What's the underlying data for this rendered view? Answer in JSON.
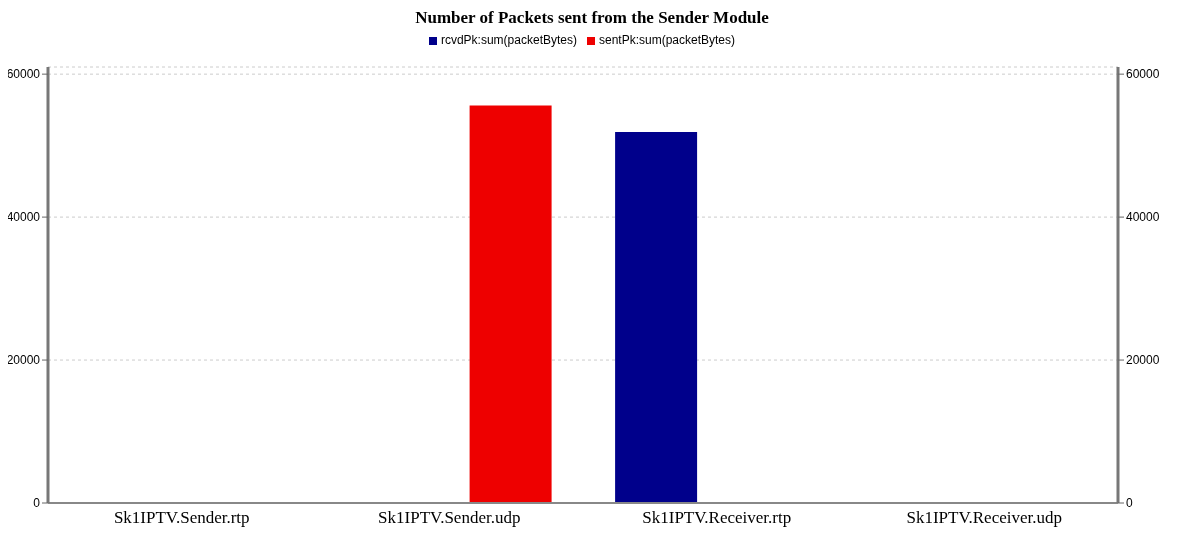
{
  "chart_data": {
    "type": "bar",
    "title": "Number of Packets sent from the Sender Module",
    "categories": [
      "Sk1IPTV.Sender.rtp",
      "Sk1IPTV.Sender.udp",
      "Sk1IPTV.Receiver.rtp",
      "Sk1IPTV.Receiver.udp"
    ],
    "series": [
      {
        "name": "rcvdPk:sum(packetBytes)",
        "color": "#00008b",
        "values": [
          0,
          0,
          51900,
          0
        ]
      },
      {
        "name": "sentPk:sum(packetBytes)",
        "color": "#ee0000",
        "values": [
          0,
          55600,
          0,
          0
        ]
      }
    ],
    "ylim": [
      0,
      61000
    ],
    "yticks": [
      0,
      20000,
      40000,
      60000
    ],
    "y2lim": [
      0,
      61000
    ],
    "y2ticks": [
      0,
      20000,
      40000,
      60000
    ],
    "grid": "y",
    "legend": "top"
  }
}
